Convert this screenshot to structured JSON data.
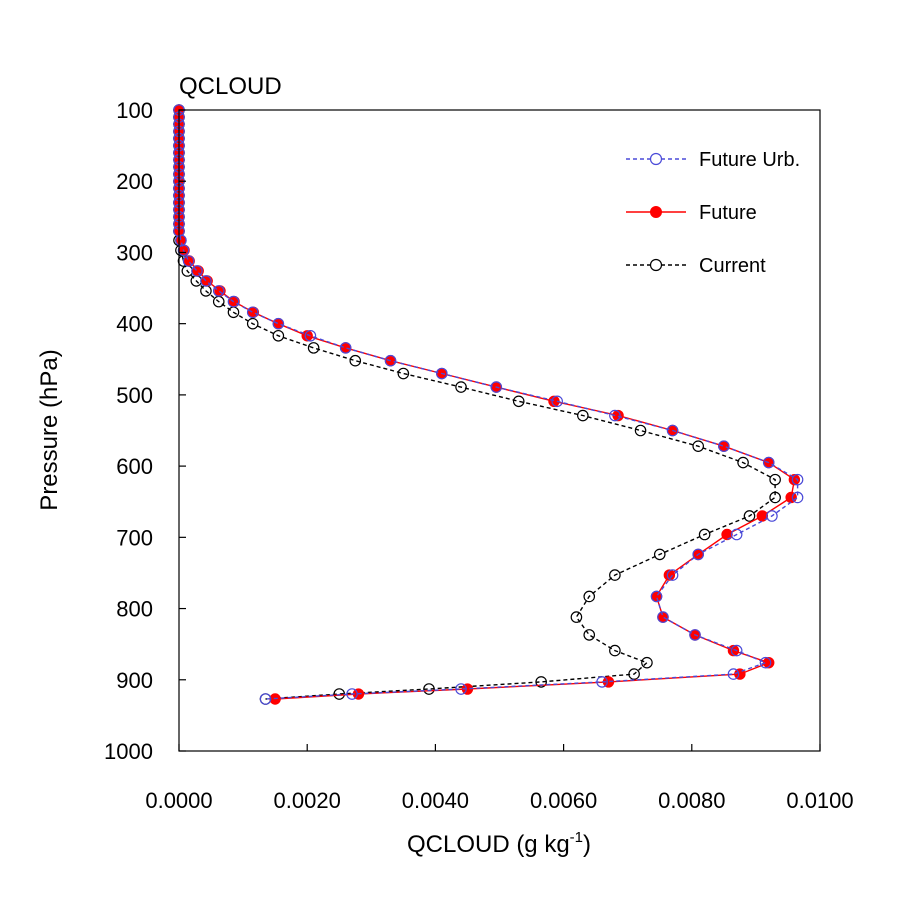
{
  "chart_data": {
    "type": "line",
    "title": "QCLOUD",
    "xlabel": "QCLOUD (g kg",
    "xlabel_sup": "-1",
    "xlabel_suffix": ")",
    "ylabel": "Pressure (hPa)",
    "xlim": [
      0,
      0.01
    ],
    "ylim": [
      100,
      1000
    ],
    "y_inverted": true,
    "xticks": [
      0,
      0.002,
      0.004,
      0.006,
      0.008,
      0.01
    ],
    "xtick_labels": [
      "0.0000",
      "0.0020",
      "0.0040",
      "0.0060",
      "0.0080",
      "0.0100"
    ],
    "yticks": [
      100,
      200,
      300,
      400,
      500,
      600,
      700,
      800,
      900,
      1000
    ],
    "ytick_labels": [
      "100",
      "200",
      "300",
      "400",
      "500",
      "600",
      "700",
      "800",
      "900",
      "1000"
    ],
    "legend_position": "top-right",
    "series": [
      {
        "name": "Future Urb.",
        "color": "#4a4ad8",
        "line_style": "dashed",
        "marker": "open-circle",
        "points": [
          [
            0.0,
            100
          ],
          [
            0.0,
            110
          ],
          [
            0.0,
            120
          ],
          [
            0.0,
            130
          ],
          [
            0.0,
            140
          ],
          [
            0.0,
            150
          ],
          [
            0.0,
            160
          ],
          [
            0.0,
            170
          ],
          [
            0.0,
            180
          ],
          [
            0.0,
            190
          ],
          [
            0.0,
            200
          ],
          [
            0.0,
            210
          ],
          [
            0.0,
            220
          ],
          [
            0.0,
            230
          ],
          [
            0.0,
            240
          ],
          [
            0.0,
            250
          ],
          [
            0.0,
            260
          ],
          [
            0.0,
            270
          ],
          [
            3e-05,
            283
          ],
          [
            7e-05,
            297
          ],
          [
            0.00015,
            312
          ],
          [
            0.00028,
            326
          ],
          [
            0.00042,
            340
          ],
          [
            0.00062,
            354
          ],
          [
            0.00085,
            369
          ],
          [
            0.00115,
            384
          ],
          [
            0.00155,
            400
          ],
          [
            0.00205,
            417
          ],
          [
            0.0026,
            434
          ],
          [
            0.0033,
            452
          ],
          [
            0.0041,
            470
          ],
          [
            0.00495,
            489
          ],
          [
            0.0059,
            509
          ],
          [
            0.0068,
            529
          ],
          [
            0.0077,
            550
          ],
          [
            0.0085,
            572
          ],
          [
            0.0092,
            595
          ],
          [
            0.00965,
            619
          ],
          [
            0.00965,
            644
          ],
          [
            0.00925,
            670
          ],
          [
            0.0087,
            696
          ],
          [
            0.0081,
            724
          ],
          [
            0.0077,
            753
          ],
          [
            0.00745,
            783
          ],
          [
            0.00755,
            812
          ],
          [
            0.00805,
            837
          ],
          [
            0.0087,
            859
          ],
          [
            0.00915,
            876
          ],
          [
            0.00865,
            892
          ],
          [
            0.0066,
            903
          ],
          [
            0.0044,
            913
          ],
          [
            0.0027,
            920
          ],
          [
            0.00135,
            927
          ]
        ]
      },
      {
        "name": "Future",
        "color": "#ff0000",
        "line_style": "solid",
        "marker": "filled-circle",
        "points": [
          [
            0.0,
            100
          ],
          [
            0.0,
            110
          ],
          [
            0.0,
            120
          ],
          [
            0.0,
            130
          ],
          [
            0.0,
            140
          ],
          [
            0.0,
            150
          ],
          [
            0.0,
            160
          ],
          [
            0.0,
            170
          ],
          [
            0.0,
            180
          ],
          [
            0.0,
            190
          ],
          [
            0.0,
            200
          ],
          [
            0.0,
            210
          ],
          [
            0.0,
            220
          ],
          [
            0.0,
            230
          ],
          [
            0.0,
            240
          ],
          [
            0.0,
            250
          ],
          [
            0.0,
            260
          ],
          [
            0.0,
            270
          ],
          [
            3e-05,
            283
          ],
          [
            8e-05,
            297
          ],
          [
            0.00016,
            312
          ],
          [
            0.0003,
            326
          ],
          [
            0.00044,
            340
          ],
          [
            0.00064,
            354
          ],
          [
            0.00086,
            369
          ],
          [
            0.00116,
            384
          ],
          [
            0.00155,
            400
          ],
          [
            0.002,
            417
          ],
          [
            0.0026,
            434
          ],
          [
            0.0033,
            452
          ],
          [
            0.0041,
            470
          ],
          [
            0.00495,
            489
          ],
          [
            0.00585,
            509
          ],
          [
            0.00685,
            529
          ],
          [
            0.0077,
            550
          ],
          [
            0.0085,
            572
          ],
          [
            0.0092,
            595
          ],
          [
            0.0096,
            619
          ],
          [
            0.00955,
            644
          ],
          [
            0.0091,
            670
          ],
          [
            0.00855,
            696
          ],
          [
            0.0081,
            724
          ],
          [
            0.00765,
            753
          ],
          [
            0.00745,
            783
          ],
          [
            0.00755,
            812
          ],
          [
            0.00805,
            837
          ],
          [
            0.00865,
            859
          ],
          [
            0.0092,
            876
          ],
          [
            0.00875,
            892
          ],
          [
            0.0067,
            903
          ],
          [
            0.0045,
            913
          ],
          [
            0.0028,
            920
          ],
          [
            0.0015,
            927
          ]
        ]
      },
      {
        "name": "Current",
        "color": "#000000",
        "line_style": "dashed",
        "marker": "open-circle",
        "points": [
          [
            0.0,
            100
          ],
          [
            0.0,
            110
          ],
          [
            0.0,
            120
          ],
          [
            0.0,
            130
          ],
          [
            0.0,
            140
          ],
          [
            0.0,
            150
          ],
          [
            0.0,
            160
          ],
          [
            0.0,
            170
          ],
          [
            0.0,
            180
          ],
          [
            0.0,
            190
          ],
          [
            0.0,
            200
          ],
          [
            0.0,
            210
          ],
          [
            0.0,
            220
          ],
          [
            0.0,
            230
          ],
          [
            0.0,
            240
          ],
          [
            0.0,
            250
          ],
          [
            0.0,
            260
          ],
          [
            0.0,
            270
          ],
          [
            0.0,
            283
          ],
          [
            3e-05,
            297
          ],
          [
            7e-05,
            312
          ],
          [
            0.00013,
            326
          ],
          [
            0.00027,
            340
          ],
          [
            0.00042,
            354
          ],
          [
            0.00062,
            369
          ],
          [
            0.00085,
            384
          ],
          [
            0.00115,
            400
          ],
          [
            0.00155,
            417
          ],
          [
            0.0021,
            434
          ],
          [
            0.00275,
            452
          ],
          [
            0.0035,
            470
          ],
          [
            0.0044,
            489
          ],
          [
            0.0053,
            509
          ],
          [
            0.0063,
            529
          ],
          [
            0.0072,
            550
          ],
          [
            0.0081,
            572
          ],
          [
            0.0088,
            595
          ],
          [
            0.0093,
            619
          ],
          [
            0.0093,
            644
          ],
          [
            0.0089,
            670
          ],
          [
            0.0082,
            696
          ],
          [
            0.0075,
            724
          ],
          [
            0.0068,
            753
          ],
          [
            0.0064,
            783
          ],
          [
            0.0062,
            812
          ],
          [
            0.0064,
            837
          ],
          [
            0.0068,
            859
          ],
          [
            0.0073,
            876
          ],
          [
            0.0071,
            892
          ],
          [
            0.00565,
            903
          ],
          [
            0.0039,
            913
          ],
          [
            0.0025,
            920
          ],
          [
            0.00135,
            927
          ]
        ]
      }
    ]
  }
}
